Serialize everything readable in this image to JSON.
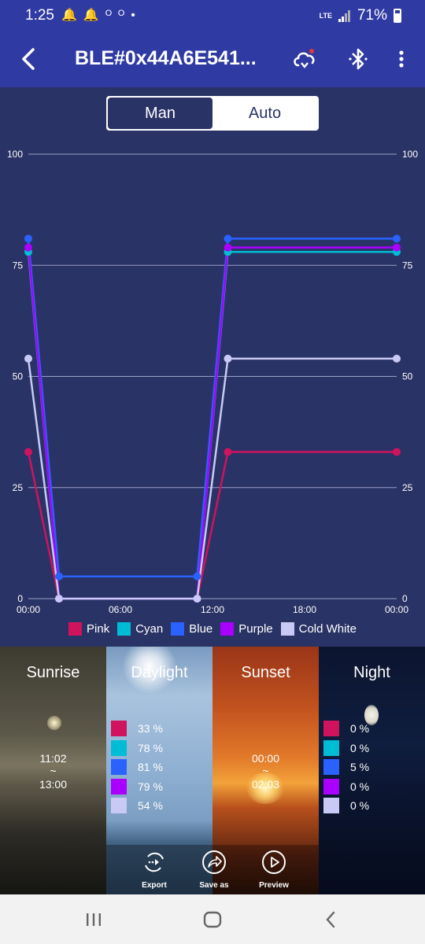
{
  "status_bar": {
    "time": "1:25",
    "battery_percent": "71%",
    "network_label": "LTE",
    "notification_icons": [
      "bell-icon",
      "bell-icon",
      "voicemail-icon",
      "dot-icon"
    ]
  },
  "app_bar": {
    "title": "BLE#0x44A6E541..."
  },
  "mode_toggle": {
    "manual_label": "Man",
    "auto_label": "Auto",
    "active": "manual"
  },
  "chart_data": {
    "type": "line",
    "x_ticks": [
      "00:00",
      "06:00",
      "12:00",
      "18:00",
      "00:00"
    ],
    "y_ticks": [
      0,
      25,
      50,
      75,
      100
    ],
    "ylim": [
      0,
      100
    ],
    "x_hours": [
      0,
      2,
      11,
      13,
      24
    ],
    "series": [
      {
        "name": "Pink",
        "color": "#d0135d",
        "values": [
          33,
          0,
          0,
          33,
          33
        ]
      },
      {
        "name": "Cyan",
        "color": "#00bcd4",
        "values": [
          78,
          0,
          0,
          78,
          78
        ]
      },
      {
        "name": "Blue",
        "color": "#2962ff",
        "values": [
          81,
          5,
          5,
          81,
          81
        ]
      },
      {
        "name": "Purple",
        "color": "#aa00ff",
        "values": [
          79,
          0,
          0,
          79,
          79
        ]
      },
      {
        "name": "Cold White",
        "color": "#c8caf5",
        "values": [
          54,
          0,
          0,
          54,
          54
        ]
      }
    ]
  },
  "phases": {
    "sunrise": {
      "title": "Sunrise",
      "start": "11:02",
      "sep": "~",
      "end": "13:00"
    },
    "daylight": {
      "title": "Daylight",
      "values": [
        "33 %",
        "78 %",
        "81 %",
        "79 %",
        "54 %"
      ]
    },
    "sunset": {
      "title": "Sunset",
      "start": "00:00",
      "sep": "~",
      "end": "02:03"
    },
    "night": {
      "title": "Night",
      "values": [
        "0 %",
        "0 %",
        "5 %",
        "0 %",
        "0 %"
      ]
    }
  },
  "actions": {
    "export_label": "Export",
    "save_as_label": "Save as",
    "preview_label": "Preview"
  }
}
